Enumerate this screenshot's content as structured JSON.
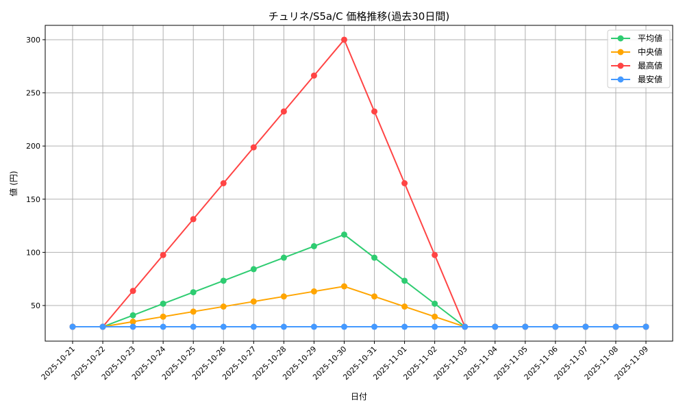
{
  "chart_data": {
    "type": "line",
    "title": "チュリネ/S5a/C 価格推移(過去30日間)",
    "xlabel": "日付",
    "ylabel": "値 (円)",
    "ylim": [
      16.5,
      313.5
    ],
    "yticks": [
      50,
      100,
      150,
      200,
      250,
      300
    ],
    "grid": true,
    "legend_position": "top-right",
    "categories": [
      "2025-10-21",
      "2025-10-22",
      "2025-10-23",
      "2025-10-24",
      "2025-10-25",
      "2025-10-26",
      "2025-10-27",
      "2025-10-28",
      "2025-10-29",
      "2025-10-30",
      "2025-10-31",
      "2025-11-01",
      "2025-11-02",
      "2025-11-03",
      "2025-11-04",
      "2025-11-05",
      "2025-11-06",
      "2025-11-07",
      "2025-11-08",
      "2025-11-09"
    ],
    "series": [
      {
        "name": "平均値",
        "color": "#2ecc71",
        "values": [
          30,
          30,
          40.8,
          51.7,
          62.5,
          73.3,
          84.2,
          95,
          105.8,
          116.7,
          95,
          73.3,
          51.7,
          30,
          30,
          30,
          30,
          30,
          30,
          30
        ]
      },
      {
        "name": "中央値",
        "color": "#ffa500",
        "values": [
          30,
          30,
          34.75,
          39.5,
          44.25,
          49,
          53.75,
          58.5,
          63.25,
          68,
          58.5,
          49,
          39.5,
          30,
          30,
          30,
          30,
          30,
          30,
          30
        ]
      },
      {
        "name": "最高値",
        "color": "#ff4444",
        "values": [
          30,
          30,
          63.75,
          97.5,
          131.25,
          165,
          198.75,
          232.5,
          266.25,
          300,
          232.5,
          165,
          97.5,
          30,
          30,
          30,
          30,
          30,
          30,
          30
        ]
      },
      {
        "name": "最安値",
        "color": "#4499ff",
        "values": [
          30,
          30,
          30,
          30,
          30,
          30,
          30,
          30,
          30,
          30,
          30,
          30,
          30,
          30,
          30,
          30,
          30,
          30,
          30,
          30
        ]
      }
    ]
  }
}
